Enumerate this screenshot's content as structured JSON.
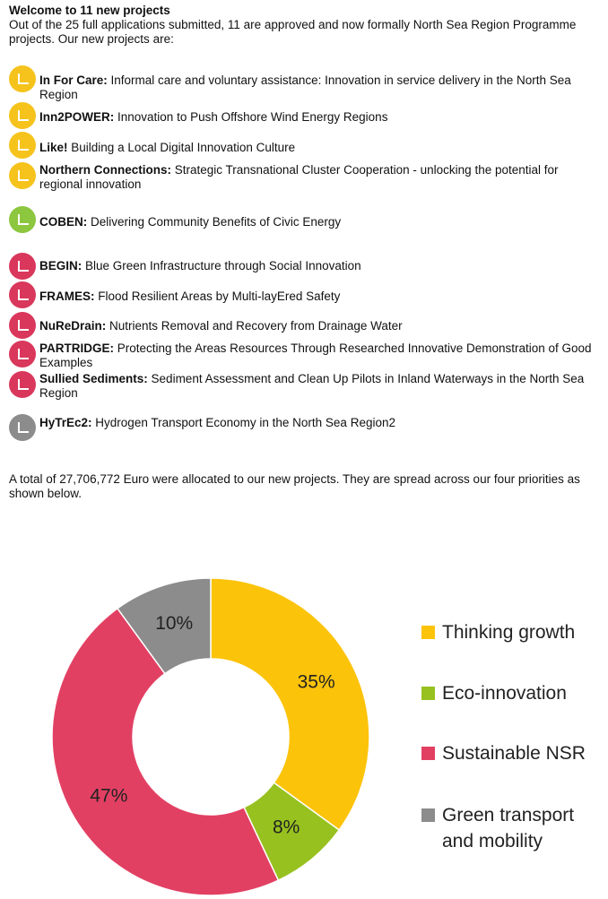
{
  "header": {
    "title": "Welcome to 11 new projects",
    "intro": "Out of the 25 full applications submitted, 11 are approved and now formally North Sea Region Programme projects. Our new projects are:"
  },
  "project_groups": [
    {
      "color": "#f5c31c",
      "projects": [
        {
          "name": "In For Care:",
          "description": "Informal care and voluntary assistance: Innovation in service delivery in the North Sea Region"
        },
        {
          "name": "Inn2POWER:",
          "description": "Innovation to Push Offshore Wind Energy Regions"
        },
        {
          "name": "Like!",
          "description": "Building a Local Digital Innovation Culture"
        },
        {
          "name": "Northern Connections:",
          "description": "Strategic Transnational Cluster Cooperation - unlocking the potential for regional innovation"
        }
      ]
    },
    {
      "color": "#8dc63f",
      "projects": [
        {
          "name": "COBEN:",
          "description": "Delivering Community Benefits of Civic Energy"
        }
      ]
    },
    {
      "color": "#d9375b",
      "projects": [
        {
          "name": "BEGIN:",
          "description": "Blue Green Infrastructure through Social Innovation"
        },
        {
          "name": "FRAMES:",
          "description": "Flood Resilient Areas by Multi-layEred Safety"
        },
        {
          "name": "NuReDrain:",
          "description": "Nutrients Removal and Recovery from Drainage Water"
        },
        {
          "name": "PARTRIDGE:",
          "description": "Protecting the Areas Resources Through Researched Innovative Demonstration of Good Examples"
        },
        {
          "name": "Sullied Sediments:",
          "description": "Sediment Assessment and Clean Up Pilots in Inland Waterways in the North Sea Region"
        }
      ]
    },
    {
      "color": "#8c8c8c",
      "projects": [
        {
          "name": "HyTrEc2:",
          "description": "Hydrogen Transport Economy in the North Sea Region2"
        }
      ]
    }
  ],
  "summary": "A total of 27,706,772 Euro were allocated to our new projects. They are spread across our four priorities as shown below.",
  "chart_data": {
    "type": "donut",
    "categories": [
      "Thinking growth",
      "Eco-innovation",
      "Sustainable NSR",
      "Green transport and mobility"
    ],
    "values": [
      35,
      8,
      47,
      10
    ],
    "value_labels": [
      "35%",
      "8%",
      "47%",
      "10%"
    ],
    "colors": [
      "#fcc30b",
      "#97c11f",
      "#e24063",
      "#8c8c8c"
    ],
    "legend": "right"
  }
}
